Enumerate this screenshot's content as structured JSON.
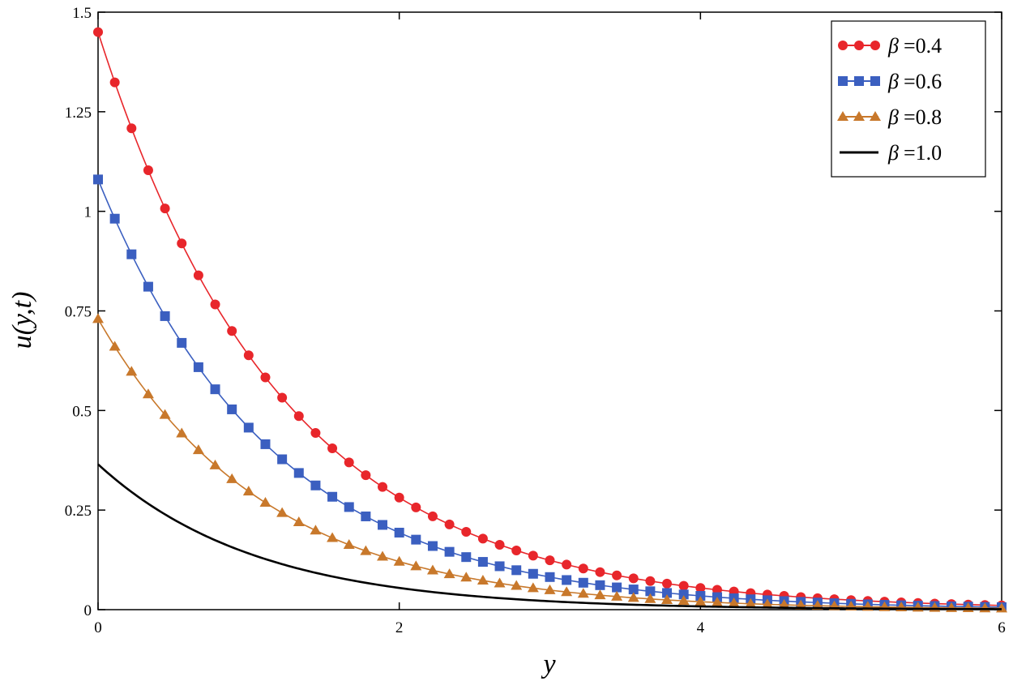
{
  "chart_data": {
    "type": "line",
    "title": "",
    "xlabel": "y",
    "ylabel": "u(y,t)",
    "xlim": [
      0,
      6
    ],
    "ylim": [
      0,
      1.5
    ],
    "x_ticks": [
      "0",
      "2",
      "4",
      "6"
    ],
    "y_ticks": [
      "0",
      "0.25",
      "0.5",
      "0.75",
      "1",
      "1.25",
      "1.5"
    ],
    "grid": false,
    "legend_position": "top-right",
    "series": [
      {
        "name": "β =0.4",
        "beta_symbol": "β",
        "beta_value": "=0.4",
        "color": "#e8262b",
        "marker": "circle",
        "u0": 1.45,
        "decay": 0.82
      },
      {
        "name": "β =0.6",
        "beta_symbol": "β",
        "beta_value": "=0.6",
        "color": "#3b5fc0",
        "marker": "square",
        "u0": 1.08,
        "decay": 0.86
      },
      {
        "name": "β =0.8",
        "beta_symbol": "β",
        "beta_value": "=0.8",
        "color": "#c8782b",
        "marker": "triangle",
        "u0": 0.73,
        "decay": 0.9
      },
      {
        "name": "β =1.0",
        "beta_symbol": "β",
        "beta_value": "=1.0",
        "color": "#000000",
        "marker": "none",
        "u0": 0.365,
        "decay": 0.95
      }
    ]
  }
}
